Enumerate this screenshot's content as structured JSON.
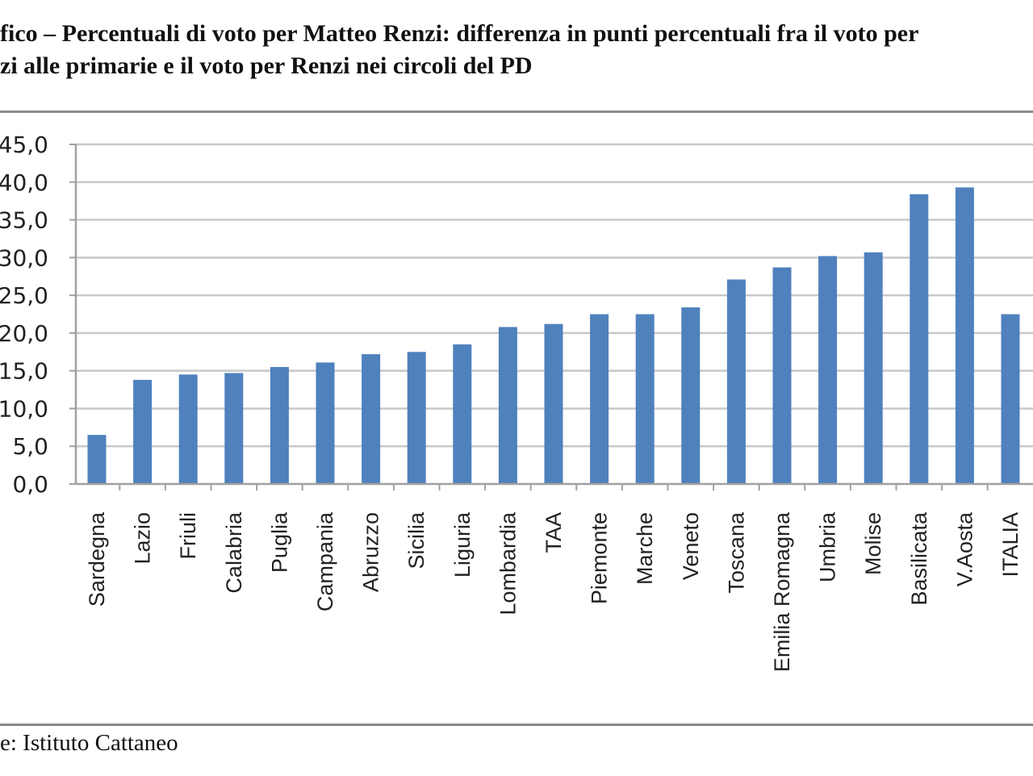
{
  "title": {
    "line1": "fico – Percentuali di voto per Matteo Renzi: differenza in punti percentuali fra il voto per",
    "line2": "zi alle primarie e il voto per Renzi nei circoli del PD"
  },
  "source": "e: Istituto Cattaneo",
  "chart_data": {
    "type": "bar",
    "categories": [
      "Sardegna",
      "Lazio",
      "Friuli",
      "Calabria",
      "Puglia",
      "Campania",
      "Abruzzo",
      "Sicilia",
      "Liguria",
      "Lombardia",
      "TAA",
      "Piemonte",
      "Marche",
      "Veneto",
      "Toscana",
      "Emilia Romagna",
      "Umbria",
      "Molise",
      "Basilicata",
      "V.Aosta",
      "ITALIA"
    ],
    "values": [
      6.5,
      13.8,
      14.5,
      14.7,
      15.5,
      16.1,
      17.2,
      17.5,
      18.5,
      20.8,
      21.2,
      22.5,
      22.5,
      23.4,
      27.1,
      28.7,
      30.2,
      30.7,
      38.4,
      39.3,
      22.5
    ],
    "ylim": [
      0,
      45
    ],
    "yticks": [
      "0,0",
      "5,0",
      "10,0",
      "15,0",
      "20,0",
      "25,0",
      "30,0",
      "35,0",
      "40,0",
      "45,0"
    ],
    "grid": true,
    "bar_color": "#4f81bd"
  }
}
